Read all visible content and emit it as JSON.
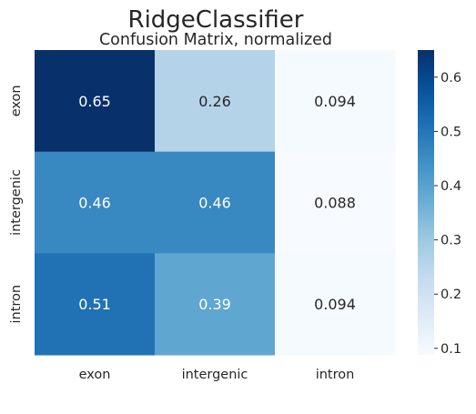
{
  "chart_data": {
    "type": "heatmap",
    "title": "RidgeClassifier",
    "subtitle": "Confusion Matrix, normalized",
    "x_categories": [
      "exon",
      "intergenic",
      "intron"
    ],
    "y_categories": [
      "exon",
      "intergenic",
      "intron"
    ],
    "values": [
      [
        0.65,
        0.26,
        0.094
      ],
      [
        0.46,
        0.46,
        0.088
      ],
      [
        0.51,
        0.39,
        0.094
      ]
    ],
    "cell_labels": [
      [
        "0.65",
        "0.26",
        "0.094"
      ],
      [
        "0.46",
        "0.46",
        "0.088"
      ],
      [
        "0.51",
        "0.39",
        "0.094"
      ]
    ],
    "colormap": "Blues",
    "colorbar": {
      "range": [
        0.088,
        0.65
      ],
      "ticks": [
        0.1,
        0.2,
        0.3,
        0.4,
        0.5,
        0.6
      ],
      "tick_labels": [
        "0.1",
        "0.2",
        "0.3",
        "0.4",
        "0.5",
        "0.6"
      ]
    },
    "xlabel": "",
    "ylabel": "",
    "grid": false,
    "legend": "colorbar-right"
  }
}
